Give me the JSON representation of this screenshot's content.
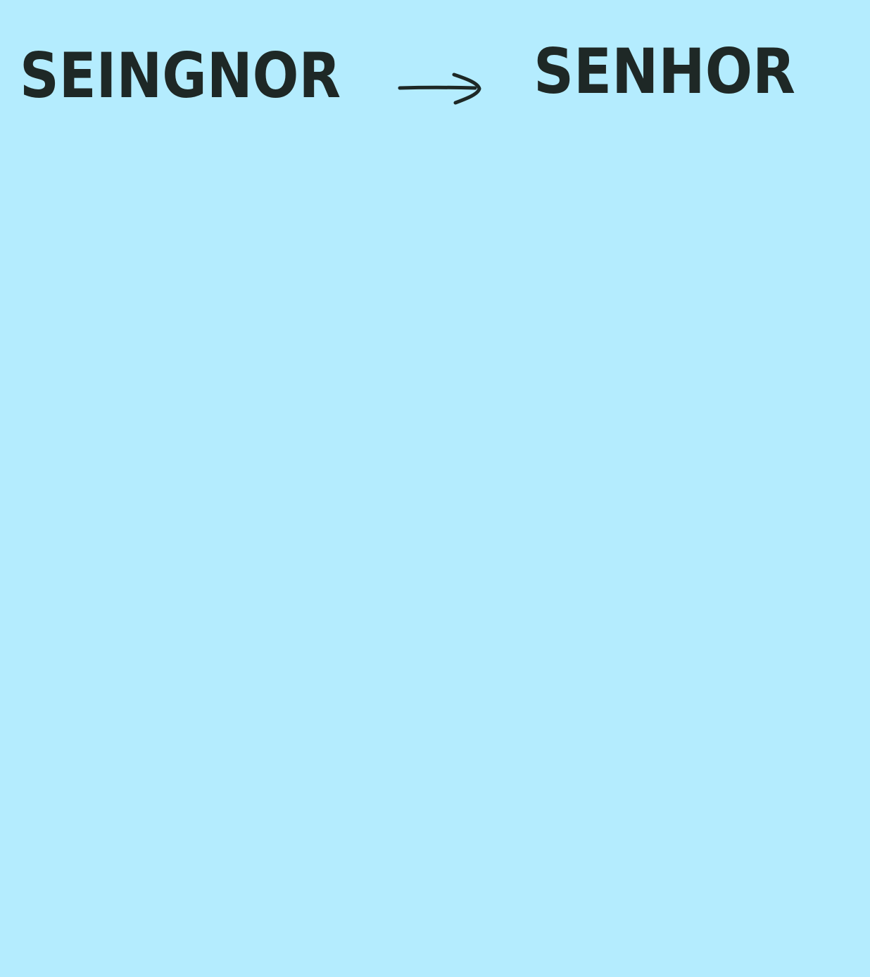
{
  "note": {
    "background_color": "#b4ecfe",
    "ink_color": "#1e2826",
    "source_word": "SEINGNOR",
    "target_word": "SENHOR",
    "arrow_icon": "right-arrow-icon"
  }
}
